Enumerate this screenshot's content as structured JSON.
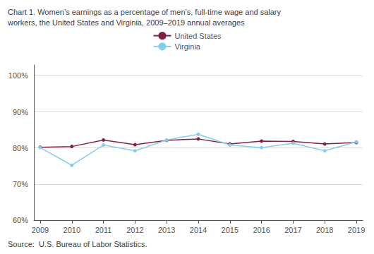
{
  "chart_data": {
    "type": "line",
    "title": "Chart 1. Women’s earnings as a percentage of men’s, full-time wage and salary\nworkers, the United States and Virginia, 2009–2019 annual averages",
    "source": "Source:  U.S. Bureau of Labor Statistics.",
    "x": [
      2009,
      2010,
      2011,
      2012,
      2013,
      2014,
      2015,
      2016,
      2017,
      2018,
      2019
    ],
    "series": [
      {
        "name": "United States",
        "color": "#862043",
        "marker": "circle",
        "values": [
          80.2,
          80.4,
          82.2,
          80.9,
          82.1,
          82.5,
          81.1,
          81.9,
          81.8,
          81.1,
          81.5
        ]
      },
      {
        "name": "Virginia",
        "color": "#87ceeb",
        "marker": "circle",
        "values": [
          80.1,
          75.2,
          80.8,
          79.2,
          82.2,
          83.8,
          80.8,
          80.1,
          81.3,
          79.2,
          81.7
        ]
      }
    ],
    "xlim": [
      2008.8,
      2019.2
    ],
    "xticks": [
      2009,
      2010,
      2011,
      2012,
      2013,
      2014,
      2015,
      2016,
      2017,
      2018,
      2019
    ],
    "ylim": [
      60,
      103
    ],
    "yticks": [
      {
        "value": 60,
        "label": "60%"
      },
      {
        "value": 70,
        "label": "70%"
      },
      {
        "value": 80,
        "label": "80%"
      },
      {
        "value": 90,
        "label": "90%"
      },
      {
        "value": 100,
        "label": "100%"
      }
    ],
    "grid": true,
    "legend": "top"
  }
}
